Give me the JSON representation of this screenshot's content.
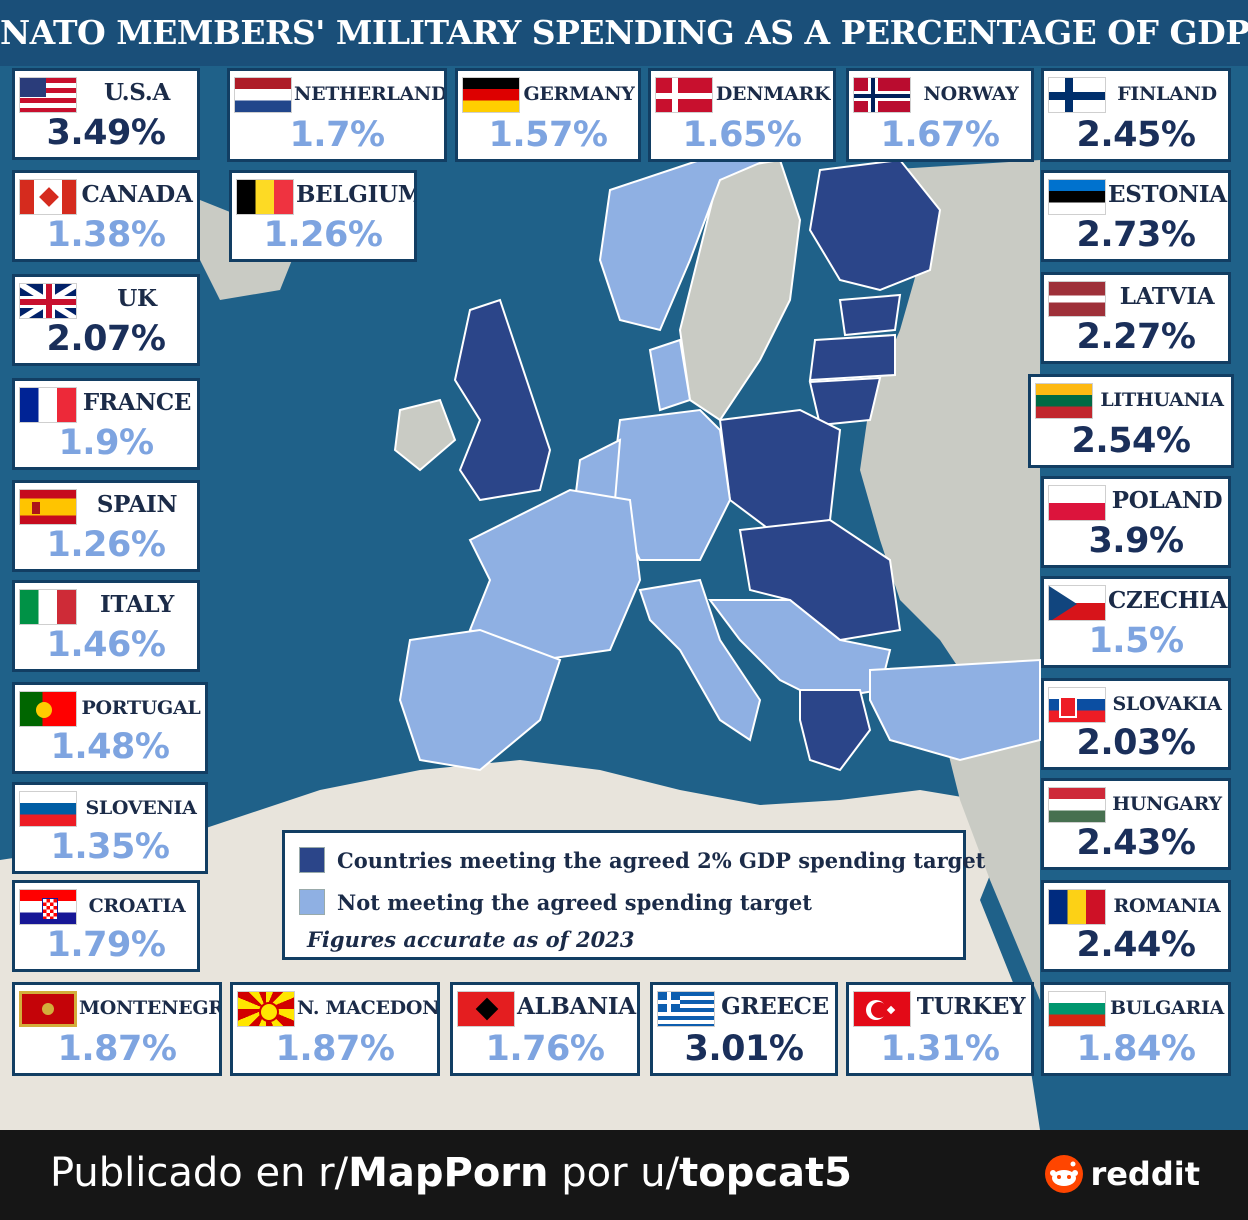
{
  "title": "NATO MEMBERS' MILITARY SPENDING AS A PERCENTAGE OF GDP",
  "colors": {
    "meeting": "#2b4589",
    "not_meeting": "#8fb0e3",
    "sea": "#1f6189",
    "non_member": "#c9cbc4",
    "africa": "#e8e4dc"
  },
  "countries": [
    {
      "key": "usa",
      "name": "U.S.A",
      "value": "3.49%",
      "meets": true
    },
    {
      "key": "netherlands",
      "name": "NETHERLANDS",
      "value": "1.7%",
      "meets": false
    },
    {
      "key": "germany",
      "name": "GERMANY",
      "value": "1.57%",
      "meets": false
    },
    {
      "key": "denmark",
      "name": "DENMARK",
      "value": "1.65%",
      "meets": false
    },
    {
      "key": "norway",
      "name": "NORWAY",
      "value": "1.67%",
      "meets": false
    },
    {
      "key": "finland",
      "name": "FINLAND",
      "value": "2.45%",
      "meets": true
    },
    {
      "key": "canada",
      "name": "CANADA",
      "value": "1.38%",
      "meets": false
    },
    {
      "key": "belgium",
      "name": "BELGIUM",
      "value": "1.26%",
      "meets": false
    },
    {
      "key": "estonia",
      "name": "ESTONIA",
      "value": "2.73%",
      "meets": true
    },
    {
      "key": "uk",
      "name": "UK",
      "value": "2.07%",
      "meets": true
    },
    {
      "key": "latvia",
      "name": "LATVIA",
      "value": "2.27%",
      "meets": true
    },
    {
      "key": "france",
      "name": "FRANCE",
      "value": "1.9%",
      "meets": false
    },
    {
      "key": "lithuania",
      "name": "LITHUANIA",
      "value": "2.54%",
      "meets": true
    },
    {
      "key": "spain",
      "name": "SPAIN",
      "value": "1.26%",
      "meets": false
    },
    {
      "key": "poland",
      "name": "POLAND",
      "value": "3.9%",
      "meets": true
    },
    {
      "key": "italy",
      "name": "ITALY",
      "value": "1.46%",
      "meets": false
    },
    {
      "key": "czechia",
      "name": "CZECHIA",
      "value": "1.5%",
      "meets": false
    },
    {
      "key": "portugal",
      "name": "PORTUGAL",
      "value": "1.48%",
      "meets": false
    },
    {
      "key": "slovakia",
      "name": "SLOVAKIA",
      "value": "2.03%",
      "meets": true
    },
    {
      "key": "slovenia",
      "name": "SLOVENIA",
      "value": "1.35%",
      "meets": false
    },
    {
      "key": "hungary",
      "name": "HUNGARY",
      "value": "2.43%",
      "meets": true
    },
    {
      "key": "croatia",
      "name": "CROATIA",
      "value": "1.79%",
      "meets": false
    },
    {
      "key": "romania",
      "name": "ROMANIA",
      "value": "2.44%",
      "meets": true
    },
    {
      "key": "montenegro",
      "name": "MONTENEGRO",
      "value": "1.87%",
      "meets": false
    },
    {
      "key": "n_macedonia",
      "name": "N. MACEDONIA",
      "value": "1.87%",
      "meets": false
    },
    {
      "key": "albania",
      "name": "ALBANIA",
      "value": "1.76%",
      "meets": false
    },
    {
      "key": "greece",
      "name": "GREECE",
      "value": "3.01%",
      "meets": true
    },
    {
      "key": "turkey",
      "name": "TURKEY",
      "value": "1.31%",
      "meets": false
    },
    {
      "key": "bulgaria",
      "name": "BULGARIA",
      "value": "1.84%",
      "meets": false
    }
  ],
  "legend": {
    "meeting": "Countries meeting the agreed 2% GDP spending target",
    "not_meeting": "Not meeting the agreed spending target",
    "note": "Figures accurate as of 2023"
  },
  "footer": {
    "prefix": "Publicado en r/",
    "subreddit": "MapPorn",
    "middle": " por u/",
    "user": "topcat5",
    "brand": "reddit"
  }
}
